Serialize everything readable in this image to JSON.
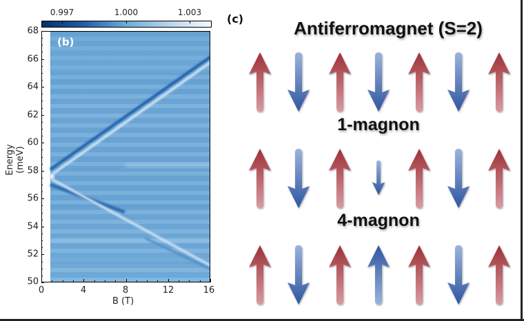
{
  "chart_data": [
    {
      "type": "heatmap",
      "panel_label": "(b)",
      "title": "",
      "xlabel": "B (T)",
      "ylabel": "Energy (meV)",
      "xlim": [
        0,
        16
      ],
      "ylim": [
        50,
        68
      ],
      "x_ticks": [
        "0",
        "4",
        "8",
        "12",
        "16"
      ],
      "y_ticks": [
        "50",
        "52",
        "54",
        "56",
        "58",
        "60",
        "62",
        "64",
        "66",
        "68"
      ],
      "colorbar": {
        "position": "top",
        "colormap": "Blues_r",
        "ticks": [
          "0.997",
          "1.000",
          "1.003"
        ],
        "range": [
          0.996,
          1.004
        ]
      },
      "features": [
        {
          "name": "upper branch",
          "from": [
            1,
            57.8
          ],
          "to": [
            16,
            66.0
          ]
        },
        {
          "name": "lower branch",
          "from": [
            1,
            57.2
          ],
          "to": [
            16,
            51.0
          ]
        },
        {
          "name": "crossing point",
          "at": [
            1,
            57.5
          ]
        }
      ],
      "grid": false
    },
    {
      "type": "diagram",
      "panel_label": "(c)",
      "rows": [
        {
          "title": "Antiferromagnet (S=2)",
          "spins": [
            "up",
            "down",
            "up",
            "down",
            "up",
            "down",
            "up"
          ],
          "lengths": [
            "full",
            "full",
            "full",
            "full",
            "full",
            "full",
            "full"
          ]
        },
        {
          "title": "1-magnon",
          "spins": [
            "up",
            "down",
            "up",
            "down",
            "up",
            "down",
            "up"
          ],
          "lengths": [
            "full",
            "full",
            "full",
            "short",
            "full",
            "full",
            "full"
          ]
        },
        {
          "title": "4-magnon",
          "spins": [
            "up",
            "down",
            "up",
            "up",
            "up",
            "down",
            "up"
          ],
          "lengths": [
            "full",
            "full",
            "full",
            "full",
            "full",
            "full",
            "full"
          ]
        }
      ]
    }
  ],
  "left_panel": {
    "label": "(b)",
    "xlabel": "B (T)",
    "ylabel": "Energy (meV)",
    "xticks": [
      "0",
      "4",
      "8",
      "12",
      "16"
    ],
    "yticks": [
      "50",
      "52",
      "54",
      "56",
      "58",
      "60",
      "62",
      "64",
      "66",
      "68"
    ],
    "colorbar_ticks": [
      "0.997",
      "1.000",
      "1.003"
    ]
  },
  "right_panel": {
    "label": "(c)",
    "titles": [
      "Antiferromagnet (S=2)",
      "1-magnon",
      "4-magnon"
    ]
  },
  "colors": {
    "spin_up_red": "#a23a3f",
    "spin_down_blue": "#3558a0",
    "heatmap_mid": "#6aa6d6"
  }
}
